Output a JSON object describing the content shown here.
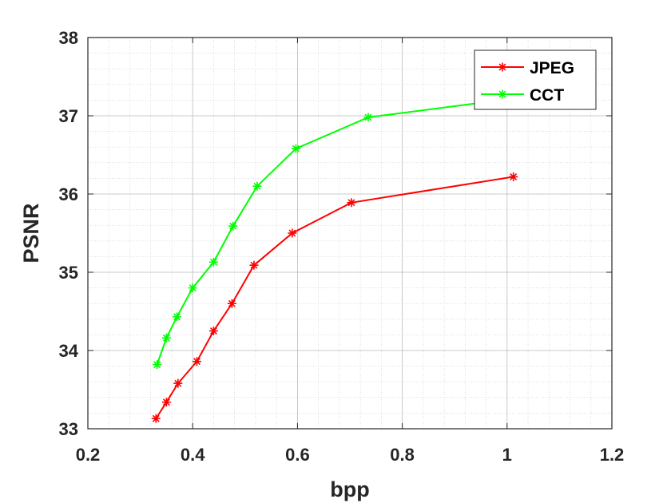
{
  "chart_data": {
    "type": "line",
    "title": "",
    "xlabel": "bpp",
    "ylabel": "PSNR",
    "xlim": [
      0.2,
      1.2
    ],
    "ylim": [
      33,
      38
    ],
    "xticks": [
      "0.2",
      "0.4",
      "0.6",
      "0.8",
      "1",
      "1.2"
    ],
    "yticks": [
      "33",
      "34",
      "35",
      "36",
      "37",
      "38"
    ],
    "grid": true,
    "minor_grid": true,
    "legend": "top-right",
    "series": [
      {
        "name": "JPEG",
        "color": "#ff0000",
        "marker": "asterisk",
        "x": [
          0.33,
          0.35,
          0.372,
          0.408,
          0.44,
          0.475,
          0.517,
          0.59,
          0.703,
          1.012
        ],
        "y": [
          33.13,
          33.34,
          33.58,
          33.86,
          34.25,
          34.6,
          35.09,
          35.5,
          35.89,
          36.22
        ]
      },
      {
        "name": "CCT",
        "color": "#00ff00",
        "marker": "asterisk",
        "x": [
          0.332,
          0.35,
          0.37,
          0.4,
          0.44,
          0.477,
          0.523,
          0.597,
          0.735,
          1.012
        ],
        "y": [
          33.82,
          34.16,
          34.43,
          34.8,
          35.13,
          35.59,
          36.1,
          36.58,
          36.98,
          37.22
        ]
      }
    ]
  }
}
